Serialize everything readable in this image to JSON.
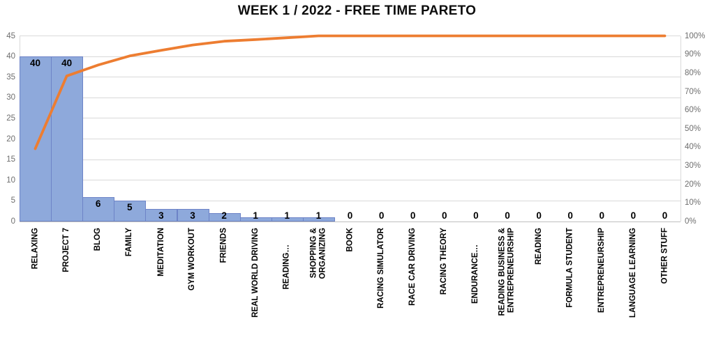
{
  "chart": {
    "title": "WEEK 1 / 2022 - FREE TIME PARETO"
  },
  "chart_data": {
    "type": "pareto (bar + cumulative percentage line)",
    "title": "WEEK 1 / 2022 - FREE TIME PARETO",
    "categories": [
      "RELAXING",
      "PROJECT 7",
      "BLOG",
      "FAMILY",
      "MEDITATION",
      "GYM WORKOUT",
      "FRIENDS",
      "REAL WORLD DRIVING",
      "READING…",
      "SHOPPING &\nORGANIZING",
      "BOOK",
      "RACING SIMULATOR",
      "RACE CAR DRIVING",
      "RACING THEORY",
      "ENDURANCE…",
      "READING BUSINESS &\nENTREPRENEURSHIP",
      "READING",
      "FORMULA STUDENT",
      "ENTREPRENEURSHIP",
      "LANGUAGE LEARNING",
      "OTHER STUFF"
    ],
    "series": [
      {
        "name": "hours-bars",
        "type": "bar",
        "values": [
          40,
          40,
          6,
          5,
          3,
          3,
          2,
          1,
          1,
          1,
          0,
          0,
          0,
          0,
          0,
          0,
          0,
          0,
          0,
          0,
          0
        ],
        "data_labels": [
          "40",
          "40",
          "6",
          "5",
          "3",
          "3",
          "2",
          "1",
          "1",
          "1",
          "0",
          "0",
          "0",
          "0",
          "0",
          "0",
          "0",
          "0",
          "0",
          "0",
          "0"
        ]
      },
      {
        "name": "cumulative-percent-line",
        "type": "line",
        "values_percent": [
          39.2,
          78.4,
          84.3,
          89.2,
          92.2,
          95.1,
          97.1,
          98.0,
          99.0,
          100.0,
          100.0,
          100.0,
          100.0,
          100.0,
          100.0,
          100.0,
          100.0,
          100.0,
          100.0,
          100.0,
          100.0
        ]
      }
    ],
    "left_axis": {
      "min": 0,
      "max": 45,
      "ticks": [
        0,
        5,
        10,
        15,
        20,
        25,
        30,
        35,
        40,
        45
      ]
    },
    "right_axis": {
      "ticks": [
        "0%",
        "10%",
        "20%",
        "30%",
        "40%",
        "50%",
        "60%",
        "70%",
        "80%",
        "90%",
        "100%"
      ]
    },
    "grid": "horizontal gridlines every 5 units, light gray",
    "legend": "none",
    "colors": {
      "bar_fill": "#8EA9DB",
      "bar_border": "#6D83C7",
      "line": "#ED7D31",
      "gridline": "#D9D9D9",
      "axis_text": "#6E6E6E",
      "label_text": "#000000",
      "title_text": "#0D0D0D",
      "background": "#FFFFFF"
    }
  }
}
